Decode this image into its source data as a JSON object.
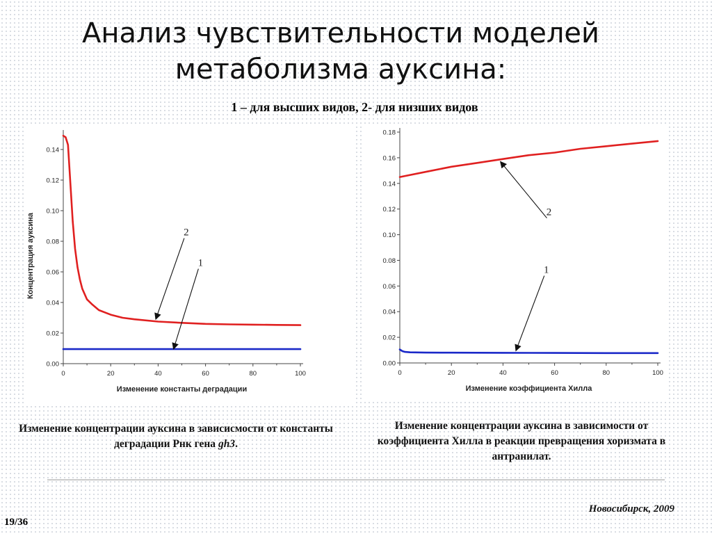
{
  "title_line1": "Анализ чувствительности моделей",
  "title_line2": "метаболизма ауксина:",
  "subtitle": "1 – для высших видов, 2- для низших видов",
  "caption_left_text": "Изменение концентрации ауксина в зависисмости от константы деградации Рнк гена ",
  "caption_left_italic": "gh3",
  "caption_left_end": ".",
  "caption_right": "Изменение концентрации ауксина в зависимости от коэффициента Хилла в реакции превращения хоризмата в антранилат.",
  "footer_place": "Новосибирск, 2009",
  "slide_number": "19/36",
  "colors": {
    "series_2": "#e02020",
    "series_1": "#1a28c8",
    "arrow": "#111111"
  },
  "chart_data": [
    {
      "type": "line",
      "xlabel": "Изменение константы деградации",
      "ylabel": "Концентрация ауксина",
      "xlim": [
        0,
        100
      ],
      "ylim": [
        0,
        0.15
      ],
      "xticks": [
        0,
        20,
        40,
        60,
        80,
        100
      ],
      "yticks": [
        0.0,
        0.02,
        0.04,
        0.06,
        0.08,
        0.1,
        0.12,
        0.14
      ],
      "tick_labels_x": [
        "0",
        "20",
        "40",
        "60",
        "80",
        "100"
      ],
      "tick_labels_y": [
        "0.00",
        "0.02",
        "0.04",
        "0.06",
        "0.08",
        "0.10",
        "0.12",
        "0.14"
      ],
      "series": [
        {
          "name": "2",
          "color": "#e02020",
          "x": [
            0,
            1,
            2,
            3,
            4,
            5,
            6,
            7,
            8,
            10,
            12,
            15,
            20,
            25,
            30,
            40,
            50,
            60,
            70,
            80,
            90,
            100
          ],
          "y": [
            0.149,
            0.148,
            0.143,
            0.118,
            0.093,
            0.075,
            0.063,
            0.055,
            0.049,
            0.042,
            0.039,
            0.035,
            0.032,
            0.03,
            0.029,
            0.0275,
            0.0267,
            0.026,
            0.0257,
            0.0255,
            0.0253,
            0.0252
          ]
        },
        {
          "name": "1",
          "color": "#1a28c8",
          "x": [
            0,
            100
          ],
          "y": [
            0.0095,
            0.0095
          ]
        }
      ],
      "annotations": [
        {
          "label": "2",
          "x": 51,
          "y": 0.082,
          "tx": 39,
          "ty": 0.029
        },
        {
          "label": "1",
          "x": 57,
          "y": 0.062,
          "tx": 46.5,
          "ty": 0.0095
        }
      ]
    },
    {
      "type": "line",
      "xlabel": "Изменение коэффициента Хилла",
      "ylabel": "",
      "xlim": [
        0,
        100
      ],
      "ylim": [
        0,
        0.18
      ],
      "xticks": [
        0,
        20,
        40,
        60,
        80,
        100
      ],
      "yticks": [
        0.0,
        0.02,
        0.04,
        0.06,
        0.08,
        0.1,
        0.12,
        0.14,
        0.16,
        0.18
      ],
      "tick_labels_x": [
        "0",
        "20",
        "40",
        "60",
        "80",
        "100"
      ],
      "tick_labels_y": [
        "0.00",
        "0.02",
        "0.04",
        "0.06",
        "0.08",
        "0.10",
        "0.12",
        "0.14",
        "0.16",
        "0.18"
      ],
      "series": [
        {
          "name": "2",
          "color": "#e02020",
          "x": [
            0,
            10,
            20,
            30,
            40,
            50,
            60,
            70,
            80,
            90,
            100
          ],
          "y": [
            0.145,
            0.149,
            0.153,
            0.156,
            0.159,
            0.162,
            0.164,
            0.167,
            0.169,
            0.171,
            0.173
          ]
        },
        {
          "name": "1",
          "color": "#1a28c8",
          "x": [
            0,
            1,
            2,
            4,
            10,
            20,
            40,
            60,
            80,
            100
          ],
          "y": [
            0.0105,
            0.0092,
            0.0086,
            0.0083,
            0.0081,
            0.008,
            0.0079,
            0.0078,
            0.0077,
            0.0077
          ]
        }
      ],
      "annotations": [
        {
          "label": "2",
          "x": 57,
          "y": 0.113,
          "tx": 39,
          "ty": 0.157
        },
        {
          "label": "1",
          "x": 56,
          "y": 0.068,
          "tx": 45,
          "ty": 0.0095
        }
      ]
    }
  ]
}
